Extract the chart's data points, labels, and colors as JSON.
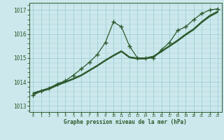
{
  "background_color": "#cce8ec",
  "grid_color": "#9ecfd6",
  "line_color": "#2d5a2d",
  "xlabel": "Graphe pression niveau de la mer (hPa)",
  "ylim": [
    1012.75,
    1017.3
  ],
  "xlim": [
    -0.5,
    23.5
  ],
  "yticks": [
    1013,
    1014,
    1015,
    1016,
    1017
  ],
  "xticks": [
    0,
    1,
    2,
    3,
    4,
    5,
    6,
    7,
    8,
    9,
    10,
    11,
    12,
    13,
    14,
    15,
    16,
    17,
    18,
    19,
    20,
    21,
    22,
    23
  ],
  "hours": [
    0,
    1,
    2,
    3,
    4,
    5,
    6,
    7,
    8,
    9,
    10,
    11,
    12,
    13,
    14,
    15,
    16,
    17,
    18,
    19,
    20,
    21,
    22,
    23
  ],
  "line_straight1": [
    1013.55,
    1013.65,
    1013.75,
    1013.9,
    1014.02,
    1014.15,
    1014.3,
    1014.5,
    1014.7,
    1014.92,
    1015.12,
    1015.3,
    1015.05,
    1015.0,
    1015.0,
    1015.08,
    1015.3,
    1015.52,
    1015.75,
    1016.0,
    1016.22,
    1016.52,
    1016.78,
    1016.95
  ],
  "line_straight2": [
    1013.52,
    1013.62,
    1013.73,
    1013.88,
    1014.0,
    1014.13,
    1014.28,
    1014.48,
    1014.68,
    1014.9,
    1015.1,
    1015.28,
    1015.03,
    1014.98,
    1014.98,
    1015.06,
    1015.28,
    1015.5,
    1015.72,
    1015.97,
    1016.2,
    1016.5,
    1016.75,
    1016.92
  ],
  "line_straight3": [
    1013.5,
    1013.6,
    1013.7,
    1013.85,
    1013.98,
    1014.11,
    1014.26,
    1014.46,
    1014.66,
    1014.88,
    1015.08,
    1015.26,
    1015.01,
    1014.96,
    1014.96,
    1015.04,
    1015.26,
    1015.48,
    1015.7,
    1015.95,
    1016.17,
    1016.47,
    1016.72,
    1016.9
  ],
  "line_spiky": [
    1013.45,
    1013.62,
    1013.75,
    1013.92,
    1014.05,
    1014.28,
    1014.55,
    1014.82,
    1015.15,
    1015.65,
    1016.5,
    1016.3,
    1015.5,
    1015.0,
    1015.0,
    1015.0,
    1015.35,
    1015.65,
    1016.15,
    1016.3,
    1016.6,
    1016.85,
    1017.0,
    1017.05
  ]
}
